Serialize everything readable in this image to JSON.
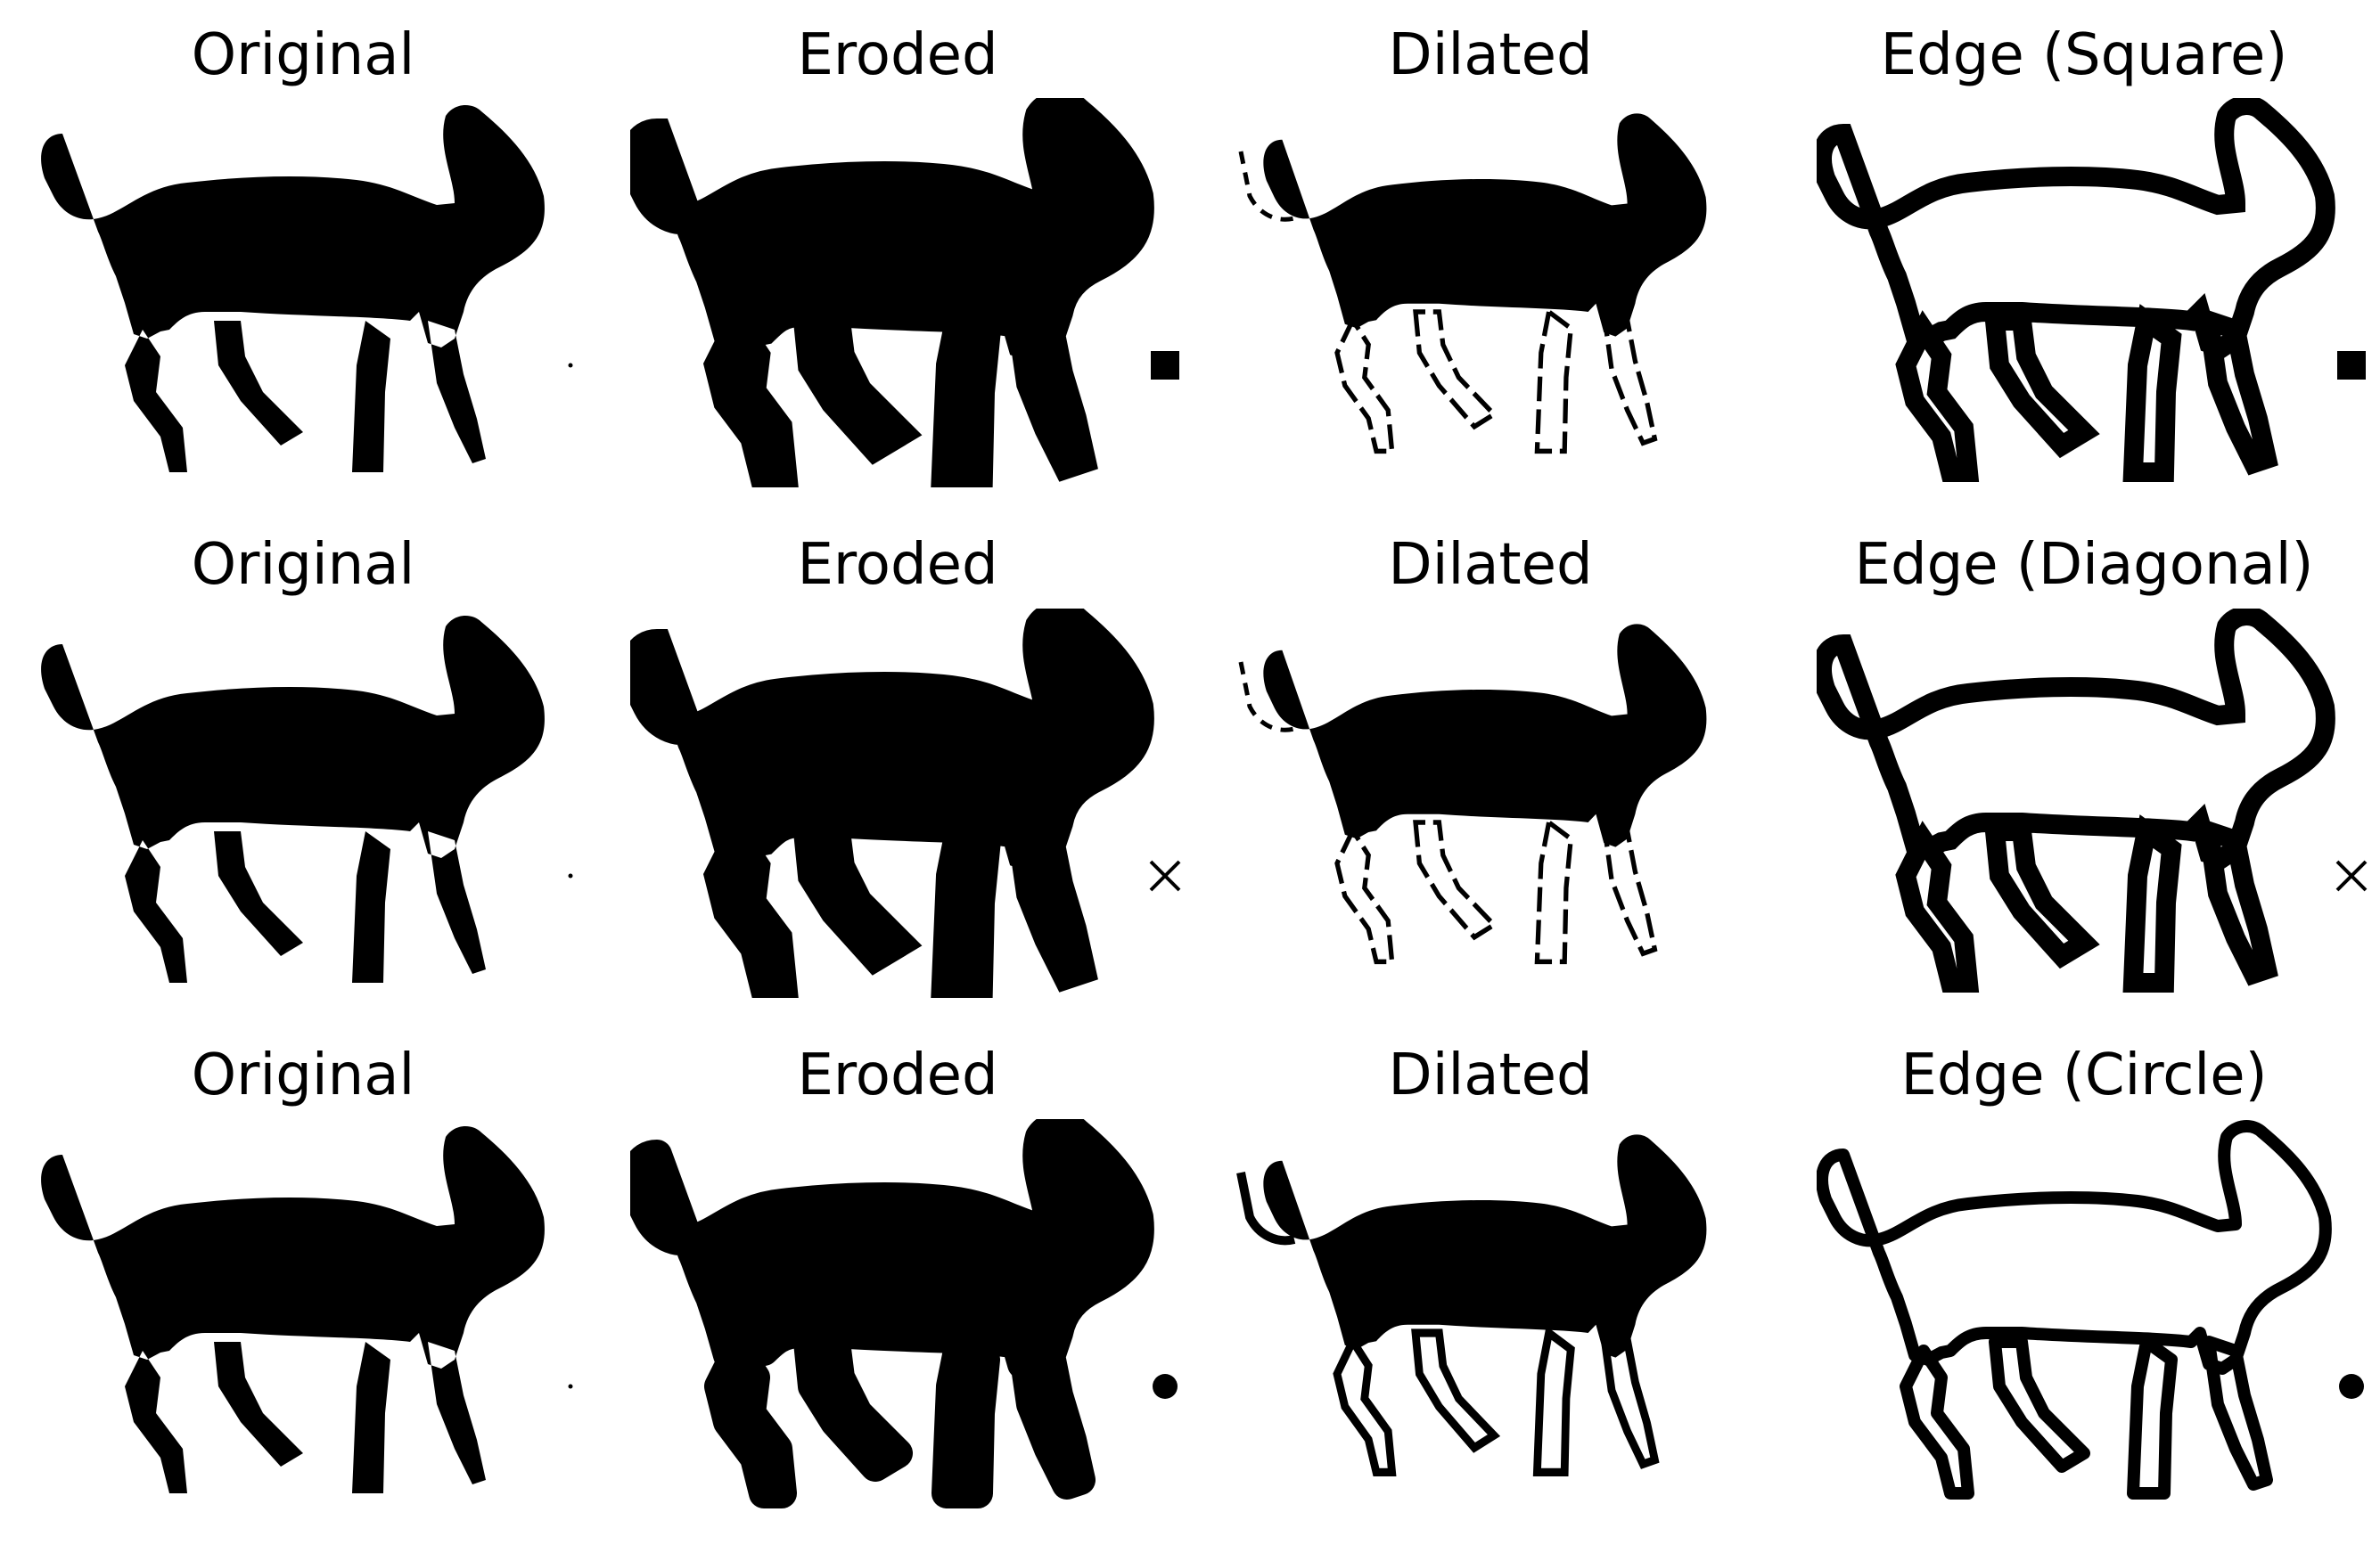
{
  "colors": {
    "foreground": "#000000",
    "background": "#ffffff"
  },
  "rows": [
    {
      "kernel": "square",
      "panels": [
        {
          "title": "Original",
          "variant": "original"
        },
        {
          "title": "Eroded",
          "variant": "eroded"
        },
        {
          "title": "Dilated",
          "variant": "dilated"
        },
        {
          "title": "Edge (Square)",
          "variant": "edge"
        }
      ]
    },
    {
      "kernel": "diagonal",
      "panels": [
        {
          "title": "Original",
          "variant": "original"
        },
        {
          "title": "Eroded",
          "variant": "eroded"
        },
        {
          "title": "Dilated",
          "variant": "dilated"
        },
        {
          "title": "Edge (Diagonal)",
          "variant": "edge"
        }
      ]
    },
    {
      "kernel": "circle",
      "panels": [
        {
          "title": "Original",
          "variant": "original"
        },
        {
          "title": "Eroded",
          "variant": "eroded"
        },
        {
          "title": "Dilated",
          "variant": "dilated"
        },
        {
          "title": "Edge (Circle)",
          "variant": "edge"
        }
      ]
    }
  ]
}
